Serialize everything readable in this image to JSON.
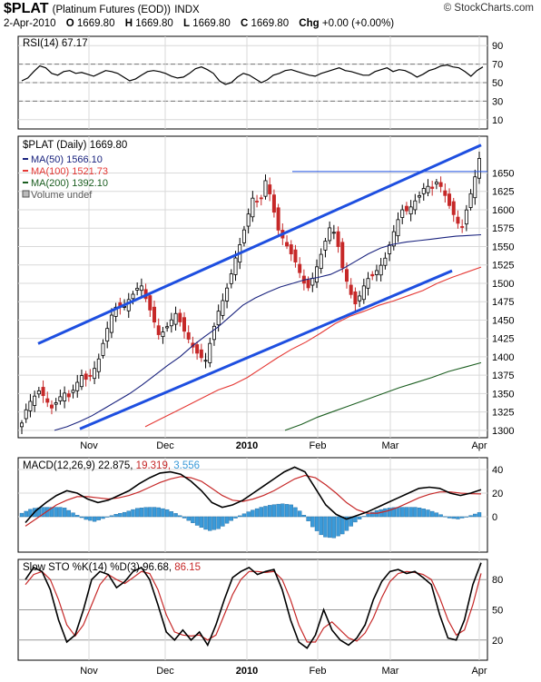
{
  "header": {
    "symbol": "$PLAT",
    "name": "(Platinum Futures (EOD))",
    "exchange": "INDX",
    "brand": "© StockCharts.com",
    "date": "2-Apr-2010",
    "open_label": "O",
    "open": "1669.80",
    "high_label": "H",
    "high": "1669.80",
    "low_label": "L",
    "low": "1669.80",
    "close_label": "C",
    "close": "1669.80",
    "chg_label": "Chg",
    "chg": "+0.00 (+0.00%)"
  },
  "colors": {
    "ma50": "#1a237e",
    "ma100": "#e53935",
    "ma200": "#1b5e20",
    "up": "#000000",
    "down": "#c62828",
    "channel": "#1e4fe0",
    "macd_hist": "#3a9ad9",
    "grid": "#d9d9d9",
    "rsi_line": "#000000"
  },
  "chart_data": [
    {
      "type": "line",
      "title": "RSI(14) 67.17",
      "ylim": [
        0,
        100
      ],
      "ytick_labels": [
        "90",
        "70",
        "50",
        "30",
        "10"
      ],
      "reference_lines": [
        30,
        50,
        70
      ],
      "series": [
        {
          "name": "RSI(14)",
          "values": [
            52,
            55,
            62,
            68,
            66,
            60,
            58,
            62,
            63,
            60,
            61,
            59,
            57,
            60,
            63,
            62,
            60,
            56,
            52,
            54,
            58,
            62,
            63,
            62,
            60,
            57,
            55,
            56,
            60,
            65,
            67,
            64,
            60,
            52,
            48,
            50,
            56,
            60,
            58,
            54,
            50,
            53,
            58,
            60,
            63,
            64,
            62,
            60,
            58,
            57,
            60,
            62,
            64,
            66,
            63,
            62,
            60,
            58,
            58,
            62,
            64,
            66,
            62,
            64,
            63,
            60,
            56,
            59,
            63,
            65,
            68,
            69,
            67,
            66,
            62,
            57,
            63,
            67
          ]
        }
      ]
    },
    {
      "type": "line",
      "title": "$PLAT (Daily) 1669.80",
      "xtick_labels": [
        "Nov",
        "Dec",
        "2010",
        "Feb",
        "Mar",
        "Apr"
      ],
      "ytick_labels": [
        "1650",
        "1625",
        "1600",
        "1575",
        "1550",
        "1525",
        "1500",
        "1475",
        "1450",
        "1425",
        "1400",
        "1375",
        "1350",
        "1325",
        "1300"
      ],
      "ylim": [
        1290,
        1700
      ],
      "legend": [
        "MA(50) 1566.10",
        "MA(100) 1521.73",
        "MA(200) 1392.10",
        "Volume undef"
      ],
      "series": [
        {
          "name": "$PLAT",
          "values": [
            1310,
            1335,
            1345,
            1355,
            1342,
            1330,
            1340,
            1352,
            1345,
            1360,
            1375,
            1368,
            1380,
            1398,
            1428,
            1455,
            1470,
            1465,
            1478,
            1488,
            1500,
            1476,
            1455,
            1430,
            1435,
            1448,
            1460,
            1440,
            1425,
            1410,
            1400,
            1395,
            1430,
            1460,
            1480,
            1505,
            1535,
            1560,
            1590,
            1620,
            1605,
            1640,
            1615,
            1575,
            1560,
            1545,
            1530,
            1510,
            1490,
            1508,
            1530,
            1555,
            1580,
            1560,
            1520,
            1495,
            1470,
            1485,
            1505,
            1510,
            1520,
            1530,
            1555,
            1580,
            1600,
            1598,
            1610,
            1620,
            1634,
            1628,
            1640,
            1624,
            1605,
            1588,
            1572,
            1605,
            1635,
            1669.8
          ]
        },
        {
          "name": "MA(50) 1566.10",
          "values": [
            1300,
            1305,
            1312,
            1320,
            1330,
            1340,
            1350,
            1362,
            1375,
            1388,
            1400,
            1415,
            1428,
            1440,
            1455,
            1470,
            1480,
            1488,
            1495,
            1500,
            1505,
            1508,
            1512,
            1520,
            1530,
            1540,
            1548,
            1553,
            1556,
            1558,
            1560,
            1562,
            1564,
            1565,
            1566
          ]
        },
        {
          "name": "MA(100) 1521.73",
          "values": [
            1305,
            1315,
            1325,
            1335,
            1345,
            1355,
            1362,
            1372,
            1385,
            1398,
            1410,
            1420,
            1432,
            1445,
            1455,
            1462,
            1470,
            1476,
            1483,
            1490,
            1500,
            1508,
            1515,
            1522
          ]
        },
        {
          "name": "MA(200) 1392.10",
          "values": [
            1300,
            1308,
            1318,
            1326,
            1334,
            1342,
            1350,
            1358,
            1365,
            1372,
            1380,
            1386,
            1392
          ]
        }
      ],
      "annotations": [
        "upper trend channel",
        "lower trend channel",
        "resistance ~1650"
      ]
    },
    {
      "type": "line",
      "title": "MACD(12,26,9) 22.875, 19.319, 3.556",
      "values_text": [
        "22.875",
        "19.319",
        "3.556"
      ],
      "ytick_labels": [
        "40",
        "20",
        "0"
      ],
      "ylim": [
        -30,
        50
      ],
      "series": [
        {
          "name": "MACD",
          "values": [
            -5,
            5,
            12,
            18,
            22,
            20,
            15,
            12,
            14,
            18,
            22,
            28,
            33,
            37,
            38,
            36,
            30,
            22,
            12,
            8,
            10,
            14,
            20,
            26,
            32,
            38,
            42,
            38,
            24,
            10,
            2,
            -2,
            1,
            4,
            8,
            12,
            16,
            20,
            24,
            25,
            24,
            20,
            18,
            20,
            22.875
          ]
        },
        {
          "name": "Signal",
          "values": [
            -8,
            -2,
            4,
            10,
            14,
            17,
            17,
            16,
            15,
            16,
            18,
            21,
            25,
            29,
            32,
            34,
            33,
            30,
            24,
            18,
            14,
            13,
            15,
            18,
            22,
            27,
            32,
            35,
            33,
            27,
            20,
            12,
            6,
            3,
            3,
            5,
            8,
            12,
            16,
            19,
            21,
            21,
            20,
            19.5,
            19.319
          ]
        },
        {
          "name": "Histogram",
          "values": [
            3,
            7,
            8,
            8,
            8,
            3,
            -2,
            -4,
            -1,
            2,
            4,
            7,
            8,
            8,
            6,
            2,
            -3,
            -8,
            -12,
            -10,
            -4,
            1,
            5,
            8,
            10,
            11,
            10,
            3,
            -9,
            -17,
            -18,
            -14,
            -5,
            1,
            5,
            7,
            8,
            8,
            8,
            6,
            3,
            -1,
            -2,
            0.5,
            3.556
          ]
        }
      ]
    },
    {
      "type": "line",
      "title": "Slow STO %K(14) %D(3) 96.68, 86.15",
      "values_text": [
        "96.68",
        "86.15"
      ],
      "ytick_labels": [
        "80",
        "50",
        "20"
      ],
      "ylim": [
        0,
        100
      ],
      "reference_lines": [
        20,
        50,
        80
      ],
      "series": [
        {
          "name": "%K(14)",
          "values": [
            80,
            92,
            88,
            70,
            40,
            18,
            25,
            50,
            80,
            88,
            85,
            72,
            78,
            88,
            92,
            80,
            55,
            28,
            20,
            30,
            20,
            28,
            15,
            35,
            60,
            82,
            88,
            92,
            85,
            88,
            90,
            70,
            40,
            18,
            12,
            25,
            50,
            30,
            20,
            15,
            22,
            35,
            60,
            78,
            88,
            90,
            86,
            88,
            82,
            75,
            45,
            22,
            20,
            40,
            75,
            96.68
          ]
        },
        {
          "name": "%D(3)",
          "values": [
            75,
            85,
            88,
            80,
            60,
            35,
            24,
            35,
            55,
            75,
            85,
            80,
            76,
            82,
            88,
            86,
            70,
            45,
            28,
            25,
            24,
            25,
            20,
            25,
            45,
            65,
            80,
            88,
            88,
            87,
            88,
            80,
            60,
            35,
            18,
            18,
            32,
            38,
            30,
            22,
            19,
            27,
            42,
            62,
            78,
            86,
            88,
            87,
            85,
            80,
            62,
            40,
            25,
            30,
            55,
            86.15
          ]
        }
      ]
    }
  ]
}
